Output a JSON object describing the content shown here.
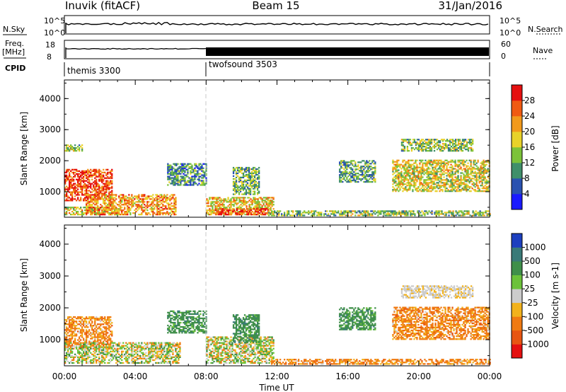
{
  "header": {
    "title_left": "Inuvik (fitACF)",
    "title_center": "Beam 15",
    "title_right": "31/Jan/2016"
  },
  "strips": {
    "nsky": {
      "label": "N.Sky",
      "top_tick": "10^5",
      "bottom_tick": "10^0"
    },
    "nsearch": {
      "label": "N.Search",
      "top_tick": "10^5",
      "bottom_tick": "10^0"
    },
    "freq": {
      "label_line1": "Freq.",
      "label_line2": "[MHz]",
      "top_tick": "18",
      "bottom_tick": "8"
    },
    "nave": {
      "label": "Nave",
      "top_tick": "60",
      "bottom_tick": "0"
    },
    "cpid": {
      "label": "CPID",
      "programs": [
        "themis 3300",
        "twofsound 3503"
      ]
    }
  },
  "chart_data": [
    {
      "type": "heatmap",
      "panel": "power",
      "ylabel": "Slant Range [km]",
      "y_ticks": [
        "1000",
        "2000",
        "3000",
        "4000"
      ],
      "ylim": [
        180,
        4600
      ],
      "xlim_hours": [
        0,
        24
      ],
      "colorbar": {
        "label": "Power [dB]",
        "ticks": [
          "4",
          "8",
          "12",
          "16",
          "20",
          "24",
          "28"
        ],
        "range": [
          0,
          32
        ],
        "colors": [
          "#1a1aff",
          "#2a52b0",
          "#3f8f6a",
          "#7cc23a",
          "#e8d22a",
          "#f29a1c",
          "#f05a12",
          "#e51010"
        ]
      },
      "echo_regions": [
        {
          "t": [
            0.0,
            2.7
          ],
          "r": [
            700,
            1700
          ],
          "level": 0.85
        },
        {
          "t": [
            0.0,
            3.0
          ],
          "r": [
            250,
            500
          ],
          "level": 0.55
        },
        {
          "t": [
            1.2,
            6.3
          ],
          "r": [
            250,
            900
          ],
          "level": 0.7
        },
        {
          "t": [
            5.8,
            8.0
          ],
          "r": [
            1200,
            1900
          ],
          "level": 0.3
        },
        {
          "t": [
            8.0,
            11.8
          ],
          "r": [
            250,
            800
          ],
          "level": 0.6
        },
        {
          "t": [
            8.5,
            11.5
          ],
          "r": [
            250,
            450
          ],
          "level": 0.85
        },
        {
          "t": [
            9.5,
            11.0
          ],
          "r": [
            900,
            1800
          ],
          "level": 0.4
        },
        {
          "t": [
            11.5,
            24.0
          ],
          "r": [
            220,
            400
          ],
          "level": 0.45
        },
        {
          "t": [
            15.5,
            17.5
          ],
          "r": [
            1300,
            2000
          ],
          "level": 0.35
        },
        {
          "t": [
            18.5,
            24.0
          ],
          "r": [
            1000,
            2000
          ],
          "level": 0.55
        },
        {
          "t": [
            19.0,
            23.0
          ],
          "r": [
            2300,
            2700
          ],
          "level": 0.45
        },
        {
          "t": [
            0.0,
            1.0
          ],
          "r": [
            2300,
            2500
          ],
          "level": 0.45
        }
      ]
    },
    {
      "type": "heatmap",
      "panel": "velocity",
      "ylabel": "Slant Range [km]",
      "xlabel": "Time UT",
      "x_ticks": [
        "00:00",
        "04:00",
        "08:00",
        "12:00",
        "16:00",
        "20:00",
        "00:00"
      ],
      "y_ticks": [
        "1000",
        "2000",
        "3000",
        "4000"
      ],
      "ylim": [
        180,
        4600
      ],
      "xlim_hours": [
        0,
        24
      ],
      "colorbar": {
        "label": "Velocity [m s-1]",
        "ticks": [
          "1000",
          "500",
          "100",
          "25",
          "-25",
          "-100",
          "-500",
          "-1000"
        ],
        "colors": [
          "#1d3fbf",
          "#3a7a78",
          "#3f8f4a",
          "#6cc23a",
          "#cccccc",
          "#f2b21c",
          "#f07a12",
          "#e85512",
          "#e51010"
        ]
      },
      "echo_regions": [
        {
          "t": [
            0.0,
            2.7
          ],
          "r": [
            700,
            1700
          ],
          "level": "negative"
        },
        {
          "t": [
            0.0,
            6.5
          ],
          "r": [
            250,
            900
          ],
          "level": "mixed"
        },
        {
          "t": [
            5.8,
            8.0
          ],
          "r": [
            1200,
            1900
          ],
          "level": "positive"
        },
        {
          "t": [
            8.0,
            11.8
          ],
          "r": [
            250,
            1100
          ],
          "level": "mixed"
        },
        {
          "t": [
            9.5,
            11.0
          ],
          "r": [
            900,
            1800
          ],
          "level": "positive"
        },
        {
          "t": [
            11.5,
            24.0
          ],
          "r": [
            220,
            400
          ],
          "level": "negative"
        },
        {
          "t": [
            15.5,
            17.5
          ],
          "r": [
            1300,
            2000
          ],
          "level": "positive"
        },
        {
          "t": [
            18.5,
            24.0
          ],
          "r": [
            1000,
            2000
          ],
          "level": "negative"
        },
        {
          "t": [
            19.0,
            23.0
          ],
          "r": [
            2300,
            2700
          ],
          "level": "near-zero"
        }
      ]
    }
  ]
}
